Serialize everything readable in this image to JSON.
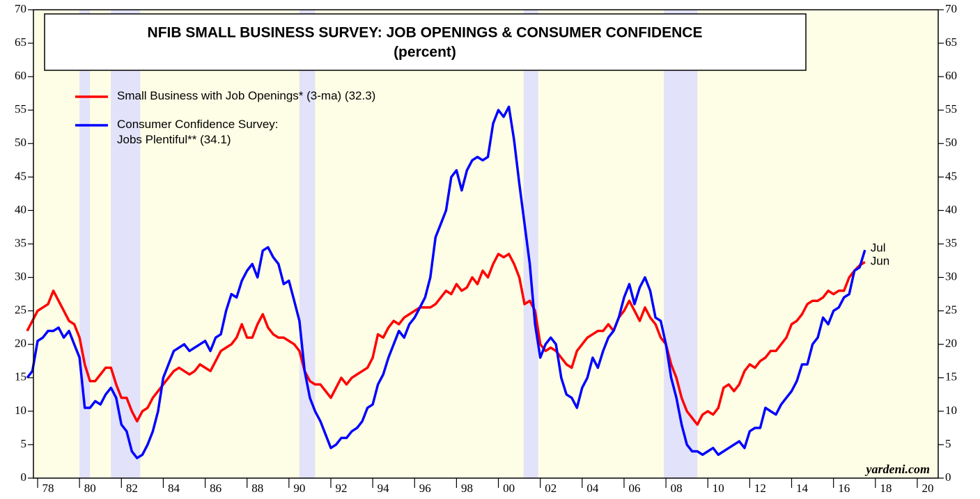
{
  "chart_data": {
    "type": "line",
    "title": "NFIB SMALL BUSINESS SURVEY: JOB OPENINGS & CONSUMER CONFIDENCE",
    "subtitle": "(percent)",
    "source": "yardeni.com",
    "annotations": [
      "Jul",
      "Jun"
    ],
    "background": "#fefee6",
    "recession_color": "#e2e2fa",
    "recessions": [
      [
        1980.0,
        1980.5
      ],
      [
        1981.5,
        1982.9
      ],
      [
        1990.5,
        1991.25
      ],
      [
        2001.2,
        2001.9
      ],
      [
        2007.9,
        2009.5
      ]
    ],
    "xlim": [
      1977.8,
      2021.0
    ],
    "ylim": [
      0,
      70
    ],
    "yticks": [
      0,
      5,
      10,
      15,
      20,
      25,
      30,
      35,
      40,
      45,
      50,
      55,
      60,
      65,
      70
    ],
    "y2lim": [
      0,
      70
    ],
    "y2ticks": [
      0,
      5,
      10,
      15,
      20,
      25,
      30,
      35,
      40,
      45,
      50,
      55,
      60,
      65,
      70
    ],
    "xticks": [
      {
        "value": 1978,
        "label": "78"
      },
      {
        "value": 1980,
        "label": "80"
      },
      {
        "value": 1982,
        "label": "82"
      },
      {
        "value": 1984,
        "label": "84"
      },
      {
        "value": 1986,
        "label": "86"
      },
      {
        "value": 1988,
        "label": "88"
      },
      {
        "value": 1990,
        "label": "90"
      },
      {
        "value": 1992,
        "label": "92"
      },
      {
        "value": 1994,
        "label": "94"
      },
      {
        "value": 1996,
        "label": "96"
      },
      {
        "value": 1998,
        "label": "98"
      },
      {
        "value": 2000,
        "label": "00"
      },
      {
        "value": 2002,
        "label": "02"
      },
      {
        "value": 2004,
        "label": "04"
      },
      {
        "value": 2006,
        "label": "06"
      },
      {
        "value": 2008,
        "label": "08"
      },
      {
        "value": 2010,
        "label": "10"
      },
      {
        "value": 2012,
        "label": "12"
      },
      {
        "value": 2014,
        "label": "14"
      },
      {
        "value": 2016,
        "label": "16"
      },
      {
        "value": 2018,
        "label": "18"
      },
      {
        "value": 2020,
        "label": "20"
      }
    ],
    "x": [
      1977.5,
      1977.75,
      1978,
      1978.25,
      1978.5,
      1978.75,
      1979,
      1979.25,
      1979.5,
      1979.75,
      1980,
      1980.25,
      1980.5,
      1980.75,
      1981,
      1981.25,
      1981.5,
      1981.75,
      1982,
      1982.25,
      1982.5,
      1982.75,
      1983,
      1983.25,
      1983.5,
      1983.75,
      1984,
      1984.25,
      1984.5,
      1984.75,
      1985,
      1985.25,
      1985.5,
      1985.75,
      1986,
      1986.25,
      1986.5,
      1986.75,
      1987,
      1987.25,
      1987.5,
      1987.75,
      1988,
      1988.25,
      1988.5,
      1988.75,
      1989,
      1989.25,
      1989.5,
      1989.75,
      1990,
      1990.25,
      1990.5,
      1990.75,
      1991,
      1991.25,
      1991.5,
      1991.75,
      1992,
      1992.25,
      1992.5,
      1992.75,
      1993,
      1993.25,
      1993.5,
      1993.75,
      1994,
      1994.25,
      1994.5,
      1994.75,
      1995,
      1995.25,
      1995.5,
      1995.75,
      1996,
      1996.25,
      1996.5,
      1996.75,
      1997,
      1997.25,
      1997.5,
      1997.75,
      1998,
      1998.25,
      1998.5,
      1998.75,
      1999,
      1999.25,
      1999.5,
      1999.75,
      2000,
      2000.25,
      2000.5,
      2000.75,
      2001,
      2001.25,
      2001.5,
      2001.75,
      2002,
      2002.25,
      2002.5,
      2002.75,
      2003,
      2003.25,
      2003.5,
      2003.75,
      2004,
      2004.25,
      2004.5,
      2004.75,
      2005,
      2005.25,
      2005.5,
      2005.75,
      2006,
      2006.25,
      2006.5,
      2006.75,
      2007,
      2007.25,
      2007.5,
      2007.75,
      2008,
      2008.25,
      2008.5,
      2008.75,
      2009,
      2009.25,
      2009.5,
      2009.75,
      2010,
      2010.25,
      2010.5,
      2010.75,
      2011,
      2011.25,
      2011.5,
      2011.75,
      2012,
      2012.25,
      2012.5,
      2012.75,
      2013,
      2013.25,
      2013.5,
      2013.75,
      2014,
      2014.25,
      2014.5,
      2014.75,
      2015,
      2015.25,
      2015.5,
      2015.75,
      2016,
      2016.25,
      2016.5,
      2016.75,
      2017,
      2017.25,
      2017.5
    ],
    "series": [
      {
        "name": "Small Business with Job Openings* (3-ma) (32.3)",
        "color": "#ff0000",
        "values": [
          22,
          23.5,
          25,
          25.5,
          26,
          28,
          26.5,
          25,
          23.5,
          23,
          21,
          17,
          14.5,
          14.5,
          15.5,
          16.5,
          16.5,
          14,
          12,
          12,
          10,
          8.5,
          10,
          10.5,
          12,
          13,
          14,
          15,
          16,
          16.5,
          16,
          15.5,
          16,
          17,
          16.5,
          16,
          17.5,
          19,
          19.5,
          20,
          21,
          23,
          21,
          21,
          23,
          24.5,
          22.5,
          21.5,
          21,
          21,
          20.5,
          20,
          19,
          16,
          14.5,
          14,
          14,
          13,
          12,
          13.5,
          15,
          14,
          15,
          15.5,
          16,
          16.5,
          18,
          21.5,
          21,
          22.5,
          23.5,
          23,
          24,
          24.5,
          25,
          25.5,
          25.5,
          25.5,
          26,
          27,
          28,
          27.5,
          29,
          28,
          28.5,
          30,
          29,
          31,
          30,
          32,
          33.5,
          33,
          33.5,
          32,
          30,
          26,
          26.5,
          25,
          20,
          19,
          19.5,
          19,
          18,
          17,
          16.5,
          19,
          20,
          21,
          21.5,
          22,
          22,
          23,
          22,
          24,
          25,
          26.5,
          25,
          23.5,
          25.5,
          24,
          23,
          21,
          20,
          17,
          15,
          12,
          10,
          9,
          8,
          9.5,
          10,
          9.5,
          10.5,
          13.5,
          14,
          13,
          14,
          16,
          17,
          16.5,
          17.5,
          18,
          19,
          19,
          20,
          21,
          23,
          23.5,
          24.5,
          26,
          26.5,
          26.5,
          27,
          28,
          27.5,
          28,
          28,
          30,
          31,
          31.8,
          32.3
        ]
      },
      {
        "name": "Consumer Confidence Survey:\nJobs Plentiful** (34.1)",
        "color": "#0000ff",
        "values": [
          15,
          16,
          20.5,
          21,
          22,
          22,
          22.5,
          21,
          22,
          20,
          18,
          10.5,
          10.5,
          11.5,
          11,
          12.5,
          13.5,
          12,
          8,
          7,
          4,
          3,
          3.5,
          5,
          7,
          10,
          15,
          17,
          19,
          19.5,
          20,
          19,
          19.5,
          20,
          20.5,
          19,
          21,
          21.5,
          25,
          27.5,
          27,
          29.5,
          31,
          32,
          30,
          34,
          34.5,
          33,
          32,
          29,
          29.5,
          26.5,
          23.5,
          16,
          12,
          10,
          8.5,
          6.5,
          4.5,
          5,
          6,
          6,
          7,
          7.5,
          8.5,
          10.5,
          11,
          14,
          15.5,
          18,
          20,
          22,
          21,
          23,
          24,
          25.5,
          27,
          30,
          36,
          38,
          40,
          45,
          46,
          43,
          46,
          47.5,
          48,
          47.5,
          48,
          53,
          55,
          54,
          55.5,
          50.5,
          44,
          38,
          32,
          23,
          18,
          20,
          21,
          20,
          15,
          12.5,
          12,
          10.5,
          13.5,
          15,
          18,
          16.5,
          19,
          21,
          22,
          24,
          27,
          29,
          26,
          28.5,
          30,
          28,
          24,
          23.5,
          20,
          15,
          12,
          8,
          5,
          4,
          4,
          3.5,
          4,
          4.5,
          3.5,
          4,
          4.5,
          5,
          5.5,
          4.5,
          7,
          7.5,
          7.5,
          10.5,
          10,
          9.5,
          11,
          12,
          13,
          14.5,
          17,
          17,
          20,
          21,
          24,
          23,
          25,
          25.5,
          27,
          27.5,
          31,
          31.5,
          34.1
        ]
      }
    ]
  }
}
